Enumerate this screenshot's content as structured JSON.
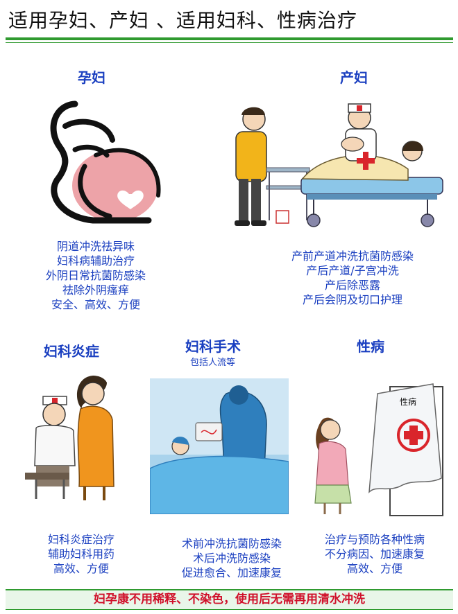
{
  "title": "适用孕妇、产妇 、适用妇科、性病治疗",
  "sections": {
    "pregnant": {
      "heading": "孕妇",
      "lines": [
        "阴道冲洗祛异味",
        "妇科病辅助治疗",
        "外阴日常抗菌防感染",
        "祛除外阴瘙痒",
        "安全、高效、方便"
      ]
    },
    "postpartum": {
      "heading": "产妇",
      "lines": [
        "产前产道冲洗抗菌防感染",
        "产后产道/子宫冲洗",
        "产后除恶露",
        "产后会阴及切口护理"
      ]
    },
    "inflammation": {
      "heading": "妇科炎症",
      "lines": [
        "妇科炎症治疗",
        "辅助妇科用药",
        "高效、方便"
      ]
    },
    "surgery": {
      "heading": "妇科手术",
      "subheading": "包括人流等",
      "lines": [
        "术前冲洗抗菌防感染",
        "术后冲洗防感染",
        "促进愈合、加速康复"
      ]
    },
    "std": {
      "heading": "性病",
      "curtain_text": "性病",
      "lines": [
        "治疗与预防各种性病",
        "不分病因、加速康复",
        "高效、方便"
      ]
    }
  },
  "footer": "妇孕康不用稀释、不染色，使用后无需再用清水冲洗",
  "colors": {
    "text_blue": "#1a3fc0",
    "rule_green": "#2f9a2f",
    "footer_red": "#d0102a",
    "cross_red": "#d9252b"
  }
}
